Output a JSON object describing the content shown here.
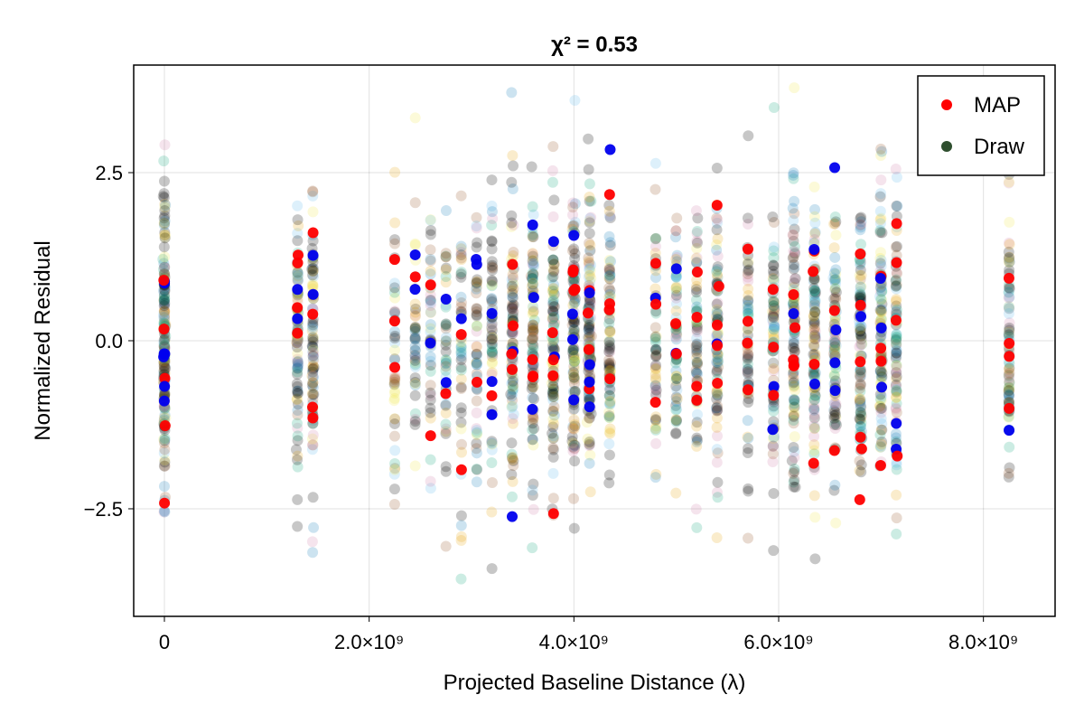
{
  "chart_data": {
    "type": "scatter",
    "title": "χ² = 0.53",
    "xlabel": "Projected Baseline Distance (λ)",
    "ylabel": "Normalized Residual",
    "xlim": [
      -300000000,
      8700000000
    ],
    "ylim": [
      -4.1,
      4.1
    ],
    "grid": true,
    "legend_position": "top-right",
    "x_ticks": [
      {
        "value": 0,
        "label": "0"
      },
      {
        "value": 2000000000,
        "label": "2.0×10⁹"
      },
      {
        "value": 4000000000,
        "label": "4.0×10⁹"
      },
      {
        "value": 6000000000,
        "label": "6.0×10⁹"
      },
      {
        "value": 8000000000,
        "label": "8.0×10⁹"
      }
    ],
    "y_ticks": [
      {
        "value": 2.5,
        "label": "2.5"
      },
      {
        "value": 0,
        "label": "0.0"
      },
      {
        "value": -2.5,
        "label": "−2.5"
      }
    ],
    "baseline_groups": [
      {
        "x": 0,
        "spread": 0.06,
        "n": 60
      },
      {
        "x": 1300000000,
        "spread": 0.05,
        "n": 30
      },
      {
        "x": 1450000000,
        "spread": 0.05,
        "n": 30
      },
      {
        "x": 2250000000,
        "spread": 0.02,
        "n": 14
      },
      {
        "x": 2450000000,
        "spread": 0.02,
        "n": 14
      },
      {
        "x": 2600000000,
        "spread": 0.02,
        "n": 14
      },
      {
        "x": 2750000000,
        "spread": 0.02,
        "n": 14
      },
      {
        "x": 2900000000,
        "spread": 0.02,
        "n": 14
      },
      {
        "x": 3050000000,
        "spread": 0.03,
        "n": 16
      },
      {
        "x": 3200000000,
        "spread": 0.04,
        "n": 20
      },
      {
        "x": 3400000000,
        "spread": 0.08,
        "n": 32
      },
      {
        "x": 3600000000,
        "spread": 0.08,
        "n": 32
      },
      {
        "x": 3800000000,
        "spread": 0.08,
        "n": 32
      },
      {
        "x": 4000000000,
        "spread": 0.1,
        "n": 40
      },
      {
        "x": 4150000000,
        "spread": 0.1,
        "n": 40
      },
      {
        "x": 4350000000,
        "spread": 0.06,
        "n": 26
      },
      {
        "x": 4800000000,
        "spread": 0.03,
        "n": 18
      },
      {
        "x": 5000000000,
        "spread": 0.05,
        "n": 22
      },
      {
        "x": 5200000000,
        "spread": 0.05,
        "n": 22
      },
      {
        "x": 5400000000,
        "spread": 0.06,
        "n": 30
      },
      {
        "x": 5700000000,
        "spread": 0.04,
        "n": 20
      },
      {
        "x": 5950000000,
        "spread": 0.06,
        "n": 26
      },
      {
        "x": 6150000000,
        "spread": 0.08,
        "n": 32
      },
      {
        "x": 6350000000,
        "spread": 0.08,
        "n": 32
      },
      {
        "x": 6550000000,
        "spread": 0.08,
        "n": 32
      },
      {
        "x": 6800000000,
        "spread": 0.08,
        "n": 34
      },
      {
        "x": 7000000000,
        "spread": 0.08,
        "n": 34
      },
      {
        "x": 7150000000,
        "spread": 0.05,
        "n": 28
      },
      {
        "x": 8250000000,
        "spread": 0.03,
        "n": 26
      }
    ],
    "series": [
      {
        "name": "MAP",
        "color": "#ff0000"
      },
      {
        "name": "Draw",
        "color": "#2f4f2f"
      }
    ],
    "draw_palette": [
      "#000000",
      "#000000",
      "#000000",
      "#0072b2",
      "#e69f00",
      "#009e73",
      "#56b4e9",
      "#f0e442",
      "#cc79a7",
      "#8b4513"
    ]
  }
}
